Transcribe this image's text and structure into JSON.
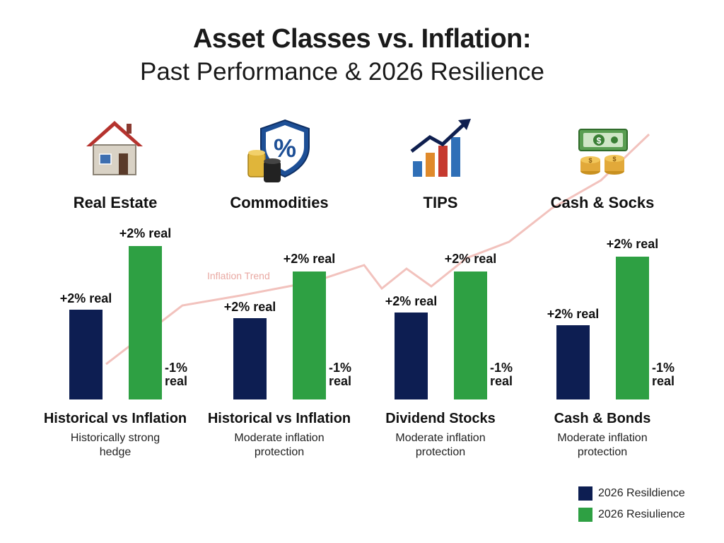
{
  "title": "Asset Classes vs. Inflation:",
  "subtitle": "Past Performance & 2026 Resilience",
  "colors": {
    "historical": "#0d1e52",
    "resilience": "#2ea043",
    "trend": "#f2c2bd"
  },
  "legend": [
    {
      "label": "2026 Resildience",
      "color": "#0d1e52"
    },
    {
      "label": "2026 Resiulience",
      "color": "#2ea043"
    }
  ],
  "chart_data": {
    "type": "bar",
    "categories": [
      "Real Estate",
      "Commodities",
      "TIPS",
      "Cash & Socks"
    ],
    "icons": [
      "house-icon",
      "shield-percent-icon",
      "growth-bars-icon",
      "cash-coins-icon"
    ],
    "group_labels": [
      "Historical vs Inflation",
      "Historical vs Inflation",
      "Dividend Stocks",
      "Cash & Bonds"
    ],
    "descriptions": [
      [
        "Historically strong",
        "hedge"
      ],
      [
        "Moderate inflation",
        "protection"
      ],
      [
        "Moderate inflation",
        "protection"
      ],
      [
        "Moderate inflation",
        "protection"
      ]
    ],
    "series": [
      {
        "name": "2026 Resildience",
        "values": [
          2,
          2,
          2,
          2
        ],
        "labels": [
          "+2% real",
          "+2% real",
          "+2% real",
          "+2% real"
        ]
      },
      {
        "name": "2026 Resiulience",
        "values": [
          2,
          2,
          2,
          2
        ],
        "labels": [
          "+2% real",
          "+2% real",
          "+2% real",
          "+2% real"
        ]
      }
    ],
    "side_labels": [
      [
        "-1%",
        "real"
      ],
      [
        "-1%",
        "real"
      ],
      [
        "-1%",
        "real"
      ],
      [
        "-1%",
        "real"
      ]
    ],
    "trend_label": "Inflation Trend"
  }
}
